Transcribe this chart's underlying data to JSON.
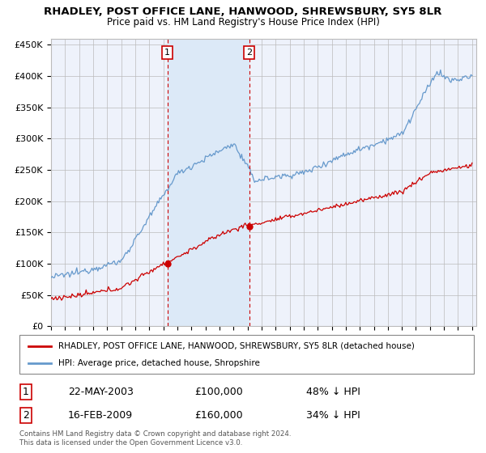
{
  "title": "RHADLEY, POST OFFICE LANE, HANWOOD, SHREWSBURY, SY5 8LR",
  "subtitle": "Price paid vs. HM Land Registry's House Price Index (HPI)",
  "ylim": [
    0,
    460000
  ],
  "yticks": [
    0,
    50000,
    100000,
    150000,
    200000,
    250000,
    300000,
    350000,
    400000,
    450000
  ],
  "ytick_labels": [
    "£0",
    "£50K",
    "£100K",
    "£150K",
    "£200K",
    "£250K",
    "£300K",
    "£350K",
    "£400K",
    "£450K"
  ],
  "xlim_start": 1995.0,
  "xlim_end": 2025.3,
  "legend_line1": "RHADLEY, POST OFFICE LANE, HANWOOD, SHREWSBURY, SY5 8LR (detached house)",
  "legend_line2": "HPI: Average price, detached house, Shropshire",
  "transaction1_x": 2003.29,
  "transaction1_y": 100000,
  "transaction1_label": "1",
  "transaction1_date": "22-MAY-2003",
  "transaction1_price": "£100,000",
  "transaction1_hpi": "48% ↓ HPI",
  "transaction2_x": 2009.12,
  "transaction2_y": 160000,
  "transaction2_label": "2",
  "transaction2_date": "16-FEB-2009",
  "transaction2_price": "£160,000",
  "transaction2_hpi": "34% ↓ HPI",
  "footer": "Contains HM Land Registry data © Crown copyright and database right 2024.\nThis data is licensed under the Open Government Licence v3.0.",
  "red_color": "#cc0000",
  "blue_color": "#6699cc",
  "blue_shade": "#dce9f7",
  "bg_color": "#eef2fb",
  "grid_color": "#bbbbbb"
}
